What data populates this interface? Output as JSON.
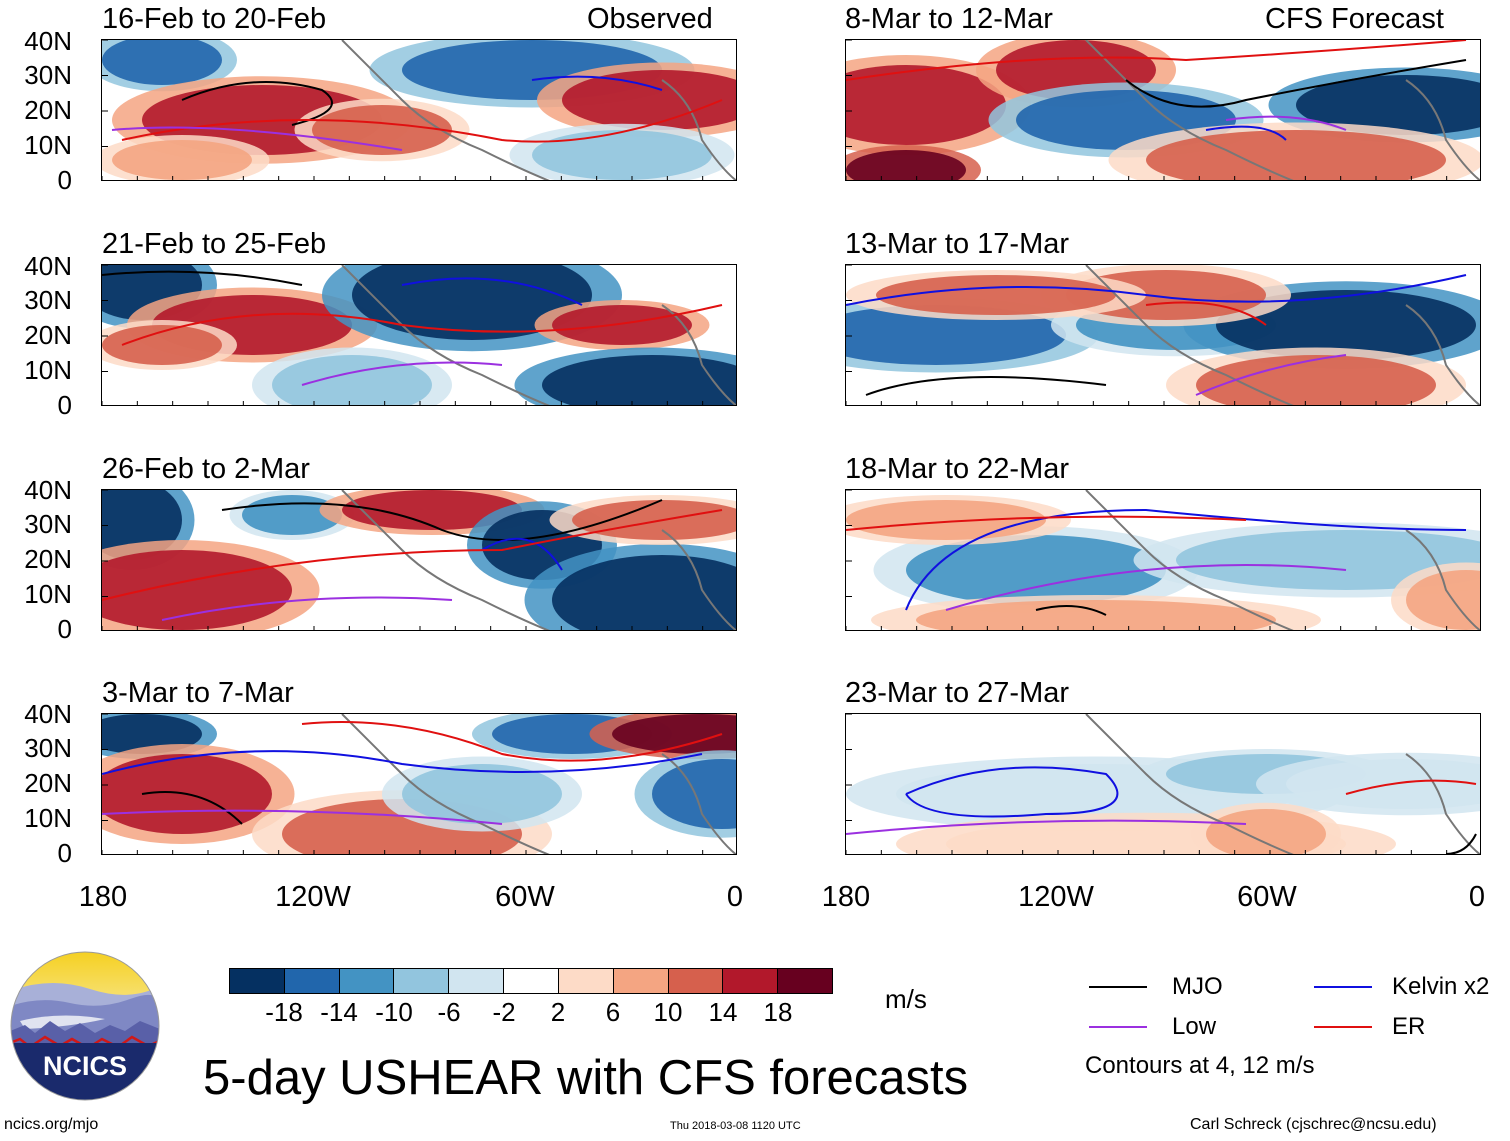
{
  "figure": {
    "title": "5-day USHEAR with CFS forecasts",
    "left_header": "Observed",
    "right_header": "CFS Forecast",
    "units": "m/s",
    "contour_note": "Contours at 4, 12 m/s",
    "site": "ncics.org/mjo",
    "timestamp": "Thu 2018-03-08 1120 UTC",
    "author": "Carl Schreck (cjschrec@ncsu.edu)",
    "logo_text": "NCICS"
  },
  "axes": {
    "y_ticks": [
      "40N",
      "30N",
      "20N",
      "10N",
      "0"
    ],
    "x_ticks": [
      "180",
      "120W",
      "60W",
      "0"
    ]
  },
  "panels": {
    "left": [
      {
        "title": "16-Feb to 20-Feb"
      },
      {
        "title": "21-Feb to 25-Feb"
      },
      {
        "title": "26-Feb to 2-Mar"
      },
      {
        "title": "3-Mar to 7-Mar"
      }
    ],
    "right": [
      {
        "title": "8-Mar to 12-Mar"
      },
      {
        "title": "13-Mar to 17-Mar"
      },
      {
        "title": "18-Mar to 22-Mar"
      },
      {
        "title": "23-Mar to 27-Mar"
      }
    ]
  },
  "colorbar": {
    "labels": [
      "-18",
      "-14",
      "-10",
      "-6",
      "-2",
      "2",
      "6",
      "10",
      "14",
      "18"
    ],
    "colors": [
      "#053061",
      "#2166ac",
      "#4393c3",
      "#92c5de",
      "#d1e5f0",
      "#ffffff",
      "#fddbc7",
      "#f4a582",
      "#d6604d",
      "#b2182b",
      "#67001f"
    ]
  },
  "legend": [
    {
      "label": "MJO",
      "color": "#000000"
    },
    {
      "label": "Kelvin x2",
      "color": "#1010e0"
    },
    {
      "label": "Low",
      "color": "#9b30e0"
    },
    {
      "label": "ER",
      "color": "#e01010"
    }
  ]
}
